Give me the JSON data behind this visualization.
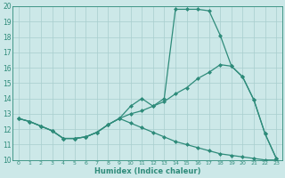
{
  "title": "",
  "xlabel": "Humidex (Indice chaleur)",
  "ylabel": "",
  "x": [
    0,
    1,
    2,
    3,
    4,
    5,
    6,
    7,
    8,
    9,
    10,
    11,
    12,
    13,
    14,
    15,
    16,
    17,
    18,
    19,
    20,
    21,
    22,
    23
  ],
  "line1": [
    12.7,
    12.5,
    12.2,
    11.9,
    11.4,
    11.4,
    11.5,
    11.8,
    12.3,
    12.7,
    13.5,
    14.0,
    13.5,
    14.0,
    19.8,
    19.8,
    19.8,
    19.7,
    18.1,
    16.1,
    15.4,
    13.9,
    11.7,
    10.1
  ],
  "line2": [
    12.7,
    12.5,
    12.2,
    11.9,
    11.4,
    11.4,
    11.5,
    11.8,
    12.3,
    12.7,
    13.0,
    13.2,
    13.5,
    13.8,
    14.3,
    14.7,
    15.3,
    15.7,
    16.2,
    16.1,
    15.4,
    13.9,
    11.7,
    10.1
  ],
  "line3": [
    12.7,
    12.5,
    12.2,
    11.9,
    11.4,
    11.4,
    11.5,
    11.8,
    12.3,
    12.7,
    12.4,
    12.1,
    11.8,
    11.5,
    11.2,
    11.0,
    10.8,
    10.6,
    10.4,
    10.3,
    10.2,
    10.1,
    10.0,
    10.0
  ],
  "line_color": "#2e8b7a",
  "bg_color": "#cce8e8",
  "grid_color": "#a8cece",
  "ylim": [
    10,
    20
  ],
  "xlim": [
    -0.5,
    23.5
  ],
  "yticks": [
    10,
    11,
    12,
    13,
    14,
    15,
    16,
    17,
    18,
    19,
    20
  ],
  "xticks": [
    0,
    1,
    2,
    3,
    4,
    5,
    6,
    7,
    8,
    9,
    10,
    11,
    12,
    13,
    14,
    15,
    16,
    17,
    18,
    19,
    20,
    21,
    22,
    23
  ]
}
